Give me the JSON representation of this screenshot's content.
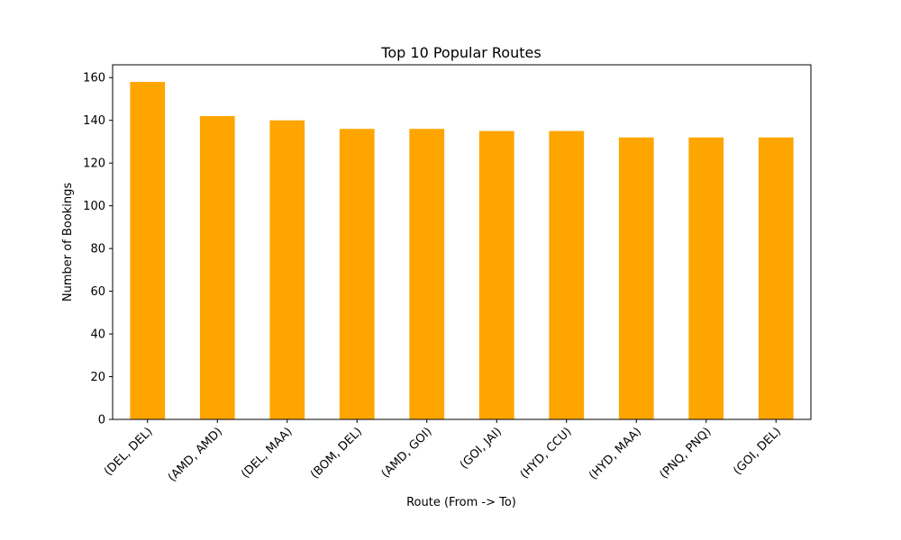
{
  "chart_data": {
    "type": "bar",
    "title": "Top 10 Popular Routes",
    "xlabel": "Route (From -> To)",
    "ylabel": "Number of Bookings",
    "categories": [
      "(DEL, DEL)",
      "(AMD, AMD)",
      "(DEL, MAA)",
      "(BOM, DEL)",
      "(AMD, GOI)",
      "(GOI, JAI)",
      "(HYD, CCU)",
      "(HYD, MAA)",
      "(PNQ, PNQ)",
      "(GOI, DEL)"
    ],
    "values": [
      158,
      142,
      140,
      136,
      136,
      135,
      135,
      132,
      132,
      132
    ],
    "ylim": [
      0,
      166
    ],
    "yticks": [
      0,
      20,
      40,
      60,
      80,
      100,
      120,
      140,
      160
    ],
    "bar_color": "#ffa500",
    "grid": false,
    "legend": "none"
  }
}
